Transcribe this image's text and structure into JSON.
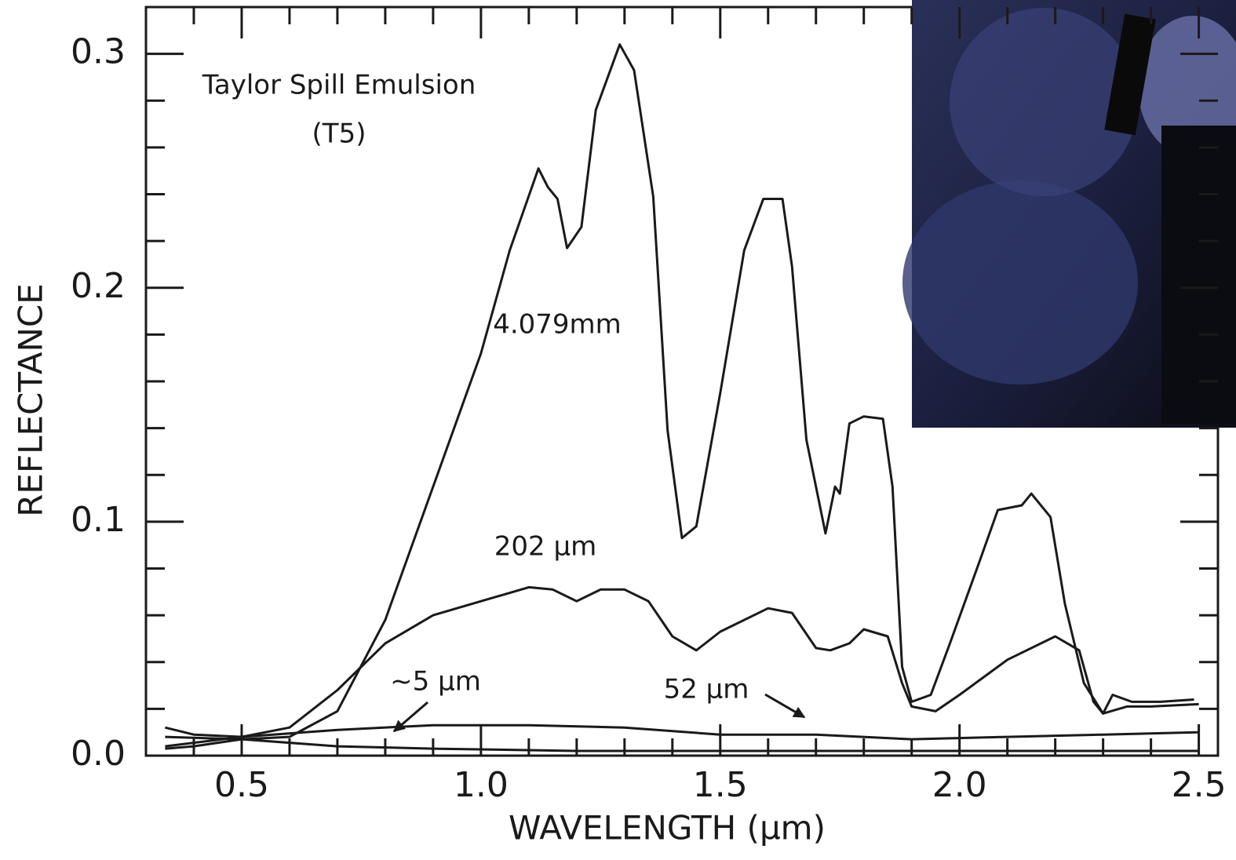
{
  "chart_data": {
    "type": "line",
    "title": "Taylor Spill Emulsion",
    "subtitle": "(T5)",
    "x_label": "WAVELENGTH (µm)",
    "y_label": "REFLECTANCE",
    "xlim": [
      0.3,
      2.54
    ],
    "ylim": [
      0,
      0.32
    ],
    "xticks": [
      0.5,
      {
        "value": 1,
        "label": "1.0"
      },
      1.5,
      {
        "value": 2,
        "label": "2.0"
      },
      2.5
    ],
    "yticks": [
      {
        "value": 0,
        "label": "0.0"
      },
      0.1,
      0.2,
      0.3
    ],
    "xminorticks": [
      0.4,
      0.6,
      0.7,
      0.8,
      0.9,
      1.1,
      1.2,
      1.3,
      1.4,
      1.6,
      1.7,
      1.8,
      1.9,
      2.1,
      2.2,
      2.3,
      2.4
    ],
    "yminorticks": [
      0.02,
      0.04,
      0.06,
      0.08,
      0.12,
      0.14,
      0.16,
      0.18,
      0.22,
      0.24,
      0.26,
      0.28
    ],
    "color": "#1a1a1a",
    "series": [
      {
        "name": "4.079mm",
        "x": [
          0.34,
          0.4,
          0.5,
          0.6,
          0.7,
          0.8,
          0.9,
          1.0,
          1.06,
          1.12,
          1.14,
          1.16,
          1.18,
          1.21,
          1.24,
          1.29,
          1.32,
          1.36,
          1.39,
          1.42,
          1.45,
          1.5,
          1.55,
          1.59,
          1.63,
          1.65,
          1.68,
          1.72,
          1.74,
          1.75,
          1.77,
          1.8,
          1.84,
          1.86,
          1.88,
          1.9,
          1.94,
          1.98,
          2.04,
          2.08,
          2.13,
          2.15,
          2.19,
          2.22,
          2.26,
          2.3,
          2.32,
          2.36,
          2.42,
          2.49
        ],
        "values": [
          0.003,
          0.004,
          0.007,
          0.008,
          0.019,
          0.058,
          0.115,
          0.172,
          0.216,
          0.251,
          0.243,
          0.238,
          0.217,
          0.226,
          0.276,
          0.304,
          0.293,
          0.239,
          0.139,
          0.093,
          0.098,
          0.155,
          0.216,
          0.238,
          0.238,
          0.209,
          0.135,
          0.095,
          0.115,
          0.112,
          0.142,
          0.145,
          0.144,
          0.115,
          0.038,
          0.023,
          0.026,
          0.048,
          0.082,
          0.105,
          0.107,
          0.112,
          0.102,
          0.065,
          0.031,
          0.018,
          0.026,
          0.023,
          0.023,
          0.024
        ]
      },
      {
        "name": "202 µm",
        "x": [
          0.34,
          0.4,
          0.5,
          0.6,
          0.7,
          0.8,
          0.9,
          1.0,
          1.1,
          1.15,
          1.2,
          1.25,
          1.3,
          1.35,
          1.4,
          1.45,
          1.5,
          1.6,
          1.65,
          1.7,
          1.73,
          1.77,
          1.8,
          1.85,
          1.88,
          1.9,
          1.95,
          2.0,
          2.1,
          2.2,
          2.25,
          2.28,
          2.3,
          2.35,
          2.4,
          2.5
        ],
        "values": [
          0.012,
          0.009,
          0.008,
          0.012,
          0.028,
          0.048,
          0.06,
          0.066,
          0.072,
          0.071,
          0.066,
          0.071,
          0.071,
          0.066,
          0.051,
          0.045,
          0.053,
          0.063,
          0.061,
          0.046,
          0.045,
          0.048,
          0.054,
          0.051,
          0.031,
          0.021,
          0.019,
          0.026,
          0.041,
          0.051,
          0.045,
          0.023,
          0.018,
          0.021,
          0.021,
          0.022
        ]
      },
      {
        "name": "~5 µm",
        "x": [
          0.34,
          0.5,
          0.7,
          0.9,
          1.1,
          1.3,
          1.5,
          1.7,
          1.9,
          2.1,
          2.3,
          2.5
        ],
        "values": [
          0.004,
          0.008,
          0.011,
          0.013,
          0.013,
          0.012,
          0.009,
          0.009,
          0.007,
          0.008,
          0.009,
          0.01
        ]
      },
      {
        "name": "52 µm",
        "x": [
          0.34,
          0.5,
          0.7,
          0.9,
          1.2,
          1.5,
          2.0,
          2.5
        ],
        "values": [
          0.008,
          0.007,
          0.004,
          0.003,
          0.002,
          0.002,
          0.002,
          0.002
        ]
      }
    ]
  }
}
